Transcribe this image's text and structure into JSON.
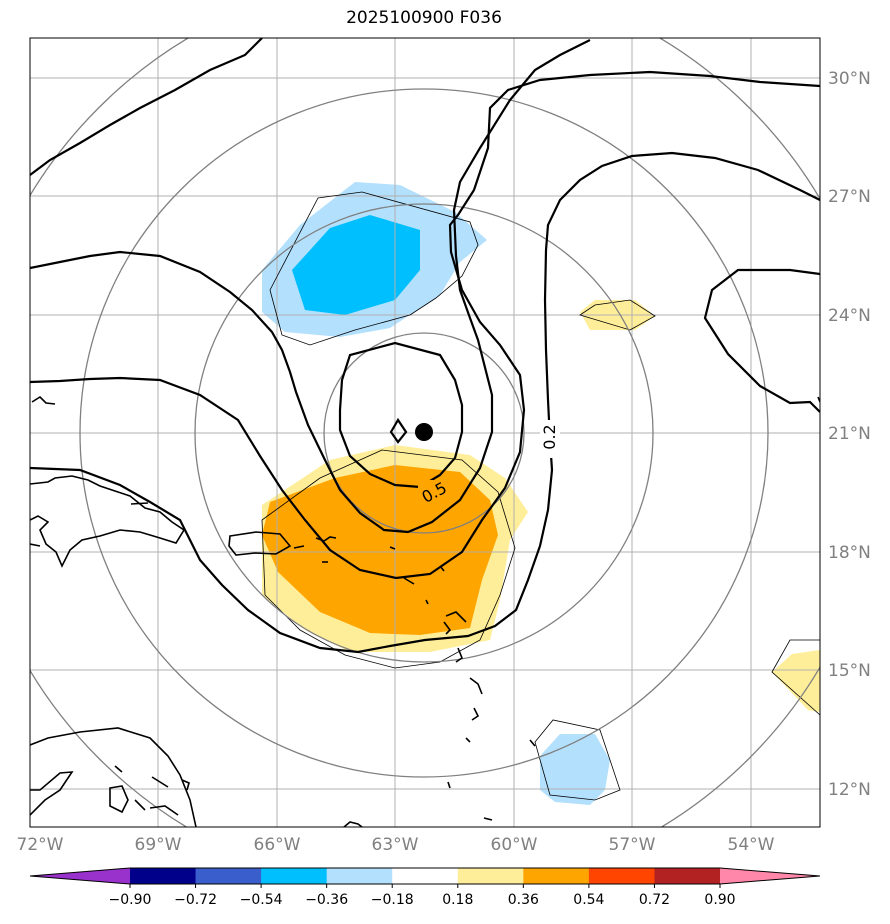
{
  "title": "2025100900 F036",
  "map": {
    "lat_labels": [
      "30°N",
      "27°N",
      "24°N",
      "21°N",
      "18°N",
      "15°N",
      "12°N"
    ],
    "lon_labels": [
      "72°W",
      "69°W",
      "66°W",
      "63°W",
      "60°W",
      "57°W",
      "54°W"
    ],
    "contour_labels": [
      "0.5",
      "0.2"
    ],
    "colors": {
      "light_yellow": "#ffee99",
      "orange": "#ffa500",
      "light_blue": "#b3e0fd",
      "cyan": "#00bfff",
      "grid": "#b0b0b0",
      "range_rings": "#808080",
      "contours": "#000000"
    }
  },
  "colorbar": {
    "ticks": [
      "−0.90",
      "−0.72",
      "−0.54",
      "−0.36",
      "−0.18",
      "0.18",
      "0.36",
      "0.54",
      "0.72",
      "0.90"
    ],
    "colors": [
      "#9932cc",
      "#00008b",
      "#3a5fcd",
      "#00bfff",
      "#b3e0fd",
      "#ffffff",
      "#ffee99",
      "#ffa500",
      "#ff4500",
      "#b22222",
      "#ff88aa"
    ]
  }
}
